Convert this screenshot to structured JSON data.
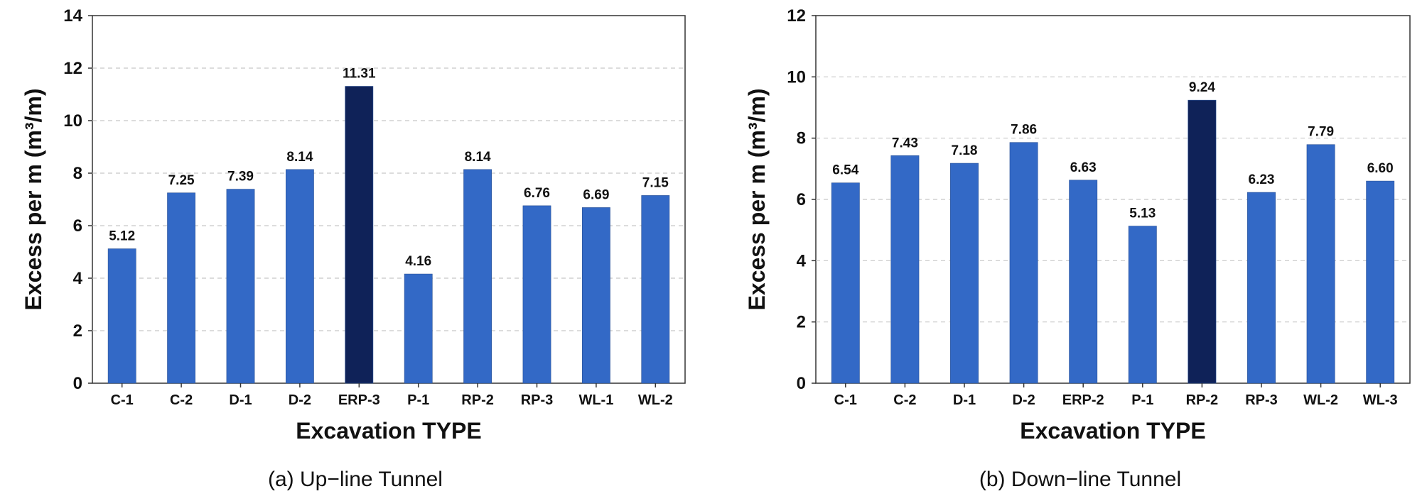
{
  "colors": {
    "bar": "#3369c6",
    "highlight": "#0f2258",
    "grid": "#c8c8c8",
    "axis": "#333333"
  },
  "chart_data": [
    {
      "type": "bar",
      "caption": "(a) Up−line Tunnel",
      "xlabel": "Excavation TYPE",
      "ylabel": "Excess per m (m³/m)",
      "ylim": [
        0,
        14
      ],
      "yticks": [
        "0",
        "2",
        "4",
        "6",
        "8",
        "10",
        "12",
        "14"
      ],
      "grid": true,
      "categories": [
        "C-1",
        "C-2",
        "D-1",
        "D-2",
        "ERP-3",
        "P-1",
        "RP-2",
        "RP-3",
        "WL-1",
        "WL-2"
      ],
      "values": [
        5.12,
        7.25,
        7.39,
        8.14,
        11.31,
        4.16,
        8.14,
        6.76,
        6.69,
        7.15
      ],
      "value_labels": [
        "5.12",
        "7.25",
        "7.39",
        "8.14",
        "11.31",
        "4.16",
        "8.14",
        "6.76",
        "6.69",
        "7.15"
      ],
      "highlight_category": "ERP-3"
    },
    {
      "type": "bar",
      "caption": "(b) Down−line Tunnel",
      "xlabel": "Excavation TYPE",
      "ylabel": "Excess per m (m³/m)",
      "ylim": [
        0,
        12
      ],
      "yticks": [
        "0",
        "2",
        "4",
        "6",
        "8",
        "10",
        "12"
      ],
      "grid": true,
      "categories": [
        "C-1",
        "C-2",
        "D-1",
        "D-2",
        "ERP-2",
        "P-1",
        "RP-2",
        "RP-3",
        "WL-2",
        "WL-3"
      ],
      "values": [
        6.54,
        7.43,
        7.18,
        7.86,
        6.63,
        5.13,
        9.24,
        6.23,
        7.79,
        6.6
      ],
      "value_labels": [
        "6.54",
        "7.43",
        "7.18",
        "7.86",
        "6.63",
        "5.13",
        "9.24",
        "6.23",
        "7.79",
        "6.60"
      ],
      "highlight_category": "RP-2"
    }
  ]
}
